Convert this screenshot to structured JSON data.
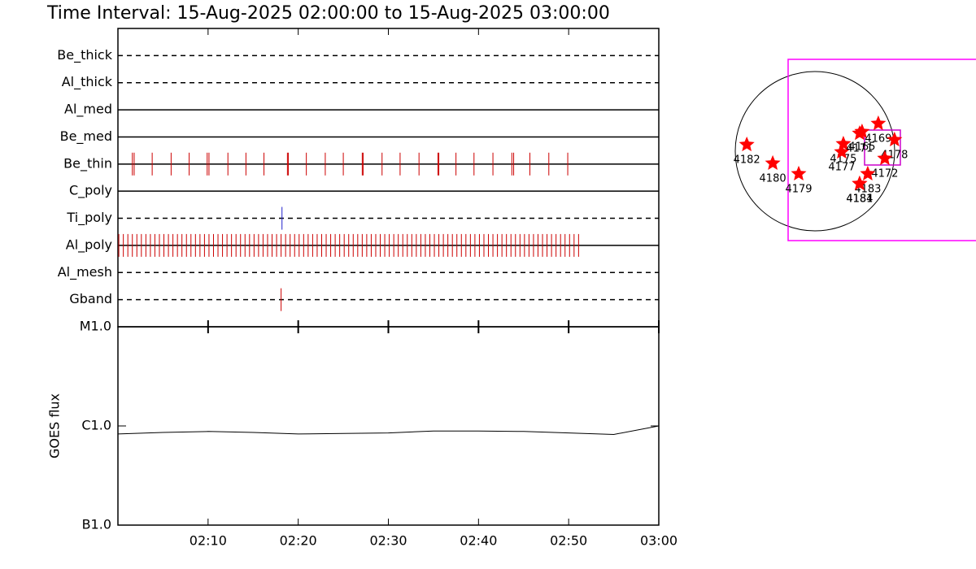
{
  "chart_data": [
    {
      "type": "timeline",
      "title": "Time Interval: 15-Aug-2025 02:00:00 to 15-Aug-2025 03:00:00",
      "xlim": [
        0,
        60
      ],
      "rows": [
        {
          "name": "Be_thick",
          "dashed": true,
          "x": []
        },
        {
          "name": "Al_thick",
          "dashed": true,
          "x": []
        },
        {
          "name": "Al_med",
          "dashed": false,
          "x": []
        },
        {
          "name": "Be_med",
          "dashed": false,
          "x": []
        },
        {
          "name": "Be_thin",
          "dashed": false,
          "color": "#cc0000",
          "x": [
            1.6,
            1.8,
            3.8,
            5.9,
            7.9,
            9.9,
            10.1,
            12.2,
            14.2,
            16.2,
            18.8,
            18.9,
            20.9,
            23.0,
            25.0,
            27.1,
            27.2,
            29.3,
            31.3,
            33.4,
            35.5,
            35.6,
            37.5,
            39.5,
            41.6,
            43.7,
            43.9,
            45.7,
            47.8,
            49.9
          ]
        },
        {
          "name": "C_poly",
          "dashed": false,
          "x": []
        },
        {
          "name": "Ti_poly",
          "dashed": true,
          "color": "#2222cc",
          "x": [
            18.2
          ]
        },
        {
          "name": "Al_poly",
          "dashed": false,
          "color": "#cc0000",
          "x": [
            0.1,
            0.6,
            1.1,
            1.6,
            2.1,
            2.6,
            3.1,
            3.6,
            4.1,
            4.6,
            5.1,
            5.6,
            6.1,
            6.6,
            7.1,
            7.6,
            8.1,
            8.6,
            9.1,
            9.6,
            10.1,
            10.6,
            11.1,
            11.6,
            12.1,
            12.6,
            13.1,
            13.6,
            14.1,
            14.6,
            15.1,
            15.6,
            16.1,
            16.6,
            17.1,
            17.6,
            18.1,
            18.6,
            19.1,
            19.6,
            20.1,
            20.6,
            21.1,
            21.6,
            22.1,
            22.6,
            23.1,
            23.6,
            24.1,
            24.6,
            25.1,
            25.6,
            26.1,
            26.6,
            27.1,
            27.6,
            28.1,
            28.6,
            29.1,
            29.6,
            30.1,
            30.6,
            31.1,
            31.6,
            32.1,
            32.6,
            33.1,
            33.6,
            34.1,
            34.6,
            35.1,
            35.6,
            36.1,
            36.6,
            37.1,
            37.6,
            38.1,
            38.6,
            39.1,
            39.6,
            40.1,
            40.6,
            41.1,
            41.6,
            42.1,
            42.6,
            43.1,
            43.6,
            44.1,
            44.6,
            45.1,
            45.6,
            46.1,
            46.6,
            47.1,
            47.6,
            48.1,
            48.6,
            49.1,
            49.6,
            50.1,
            50.6,
            51.1
          ]
        },
        {
          "name": "Al_mesh",
          "dashed": true,
          "x": []
        },
        {
          "name": "Gband",
          "dashed": true,
          "color": "#cc0000",
          "x": [
            18.1
          ]
        }
      ]
    },
    {
      "type": "line",
      "ylabel": "GOES flux",
      "log": true,
      "xlim": [
        0,
        60
      ],
      "ylim": [
        1e-07,
        1e-05
      ],
      "xticks": [
        {
          "value": 10,
          "label": "02:10"
        },
        {
          "value": 20,
          "label": "02:20"
        },
        {
          "value": 30,
          "label": "02:30"
        },
        {
          "value": 40,
          "label": "02:40"
        },
        {
          "value": 50,
          "label": "02:50"
        },
        {
          "value": 60,
          "label": "03:00"
        }
      ],
      "yticks": [
        {
          "value": 1e-07,
          "label": "B1.0"
        },
        {
          "value": 1e-06,
          "label": "C1.0"
        },
        {
          "value": 1e-05,
          "label": "M1.0"
        }
      ],
      "color": "#000000",
      "x": [
        0,
        5,
        10,
        15,
        20,
        25,
        30,
        35,
        40,
        45,
        50,
        55,
        60
      ],
      "values": [
        8.3e-07,
        8.6e-07,
        8.8e-07,
        8.6e-07,
        8.3e-07,
        8.4e-07,
        8.5e-07,
        8.9e-07,
        8.9e-07,
        8.8e-07,
        8.5e-07,
        8.2e-07,
        1e-06
      ]
    },
    {
      "type": "scatter",
      "xlim": [
        -1000,
        1000
      ],
      "ylim": [
        -1000,
        1000
      ],
      "color": "#ff0000",
      "labels": [
        "4182",
        "4180",
        "4179",
        "4175",
        "4177",
        "4171",
        "4165",
        "4169",
        "4178",
        "4172",
        "4183",
        "4181",
        "4184"
      ],
      "x": [
        -814,
        -504,
        -194,
        339,
        320,
        533,
        562,
        756,
        950,
        834,
        630,
        533,
        533
      ],
      "y": [
        78,
        -145,
        -271,
        87,
        -10,
        213,
        233,
        330,
        136,
        -87,
        -271,
        -388,
        -388
      ]
    }
  ]
}
